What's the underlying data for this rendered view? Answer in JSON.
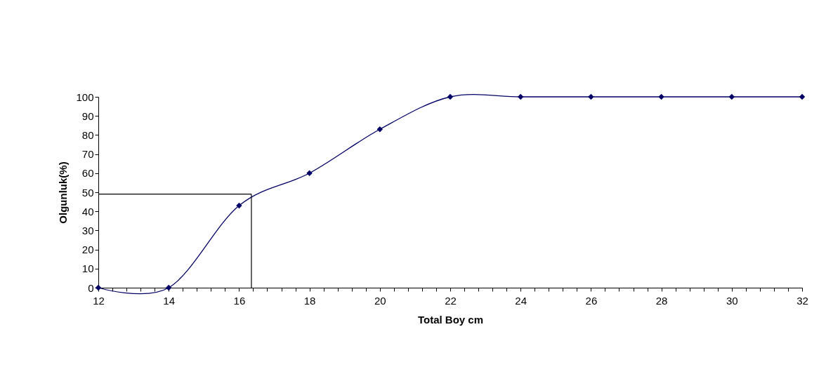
{
  "chart_data": {
    "type": "line",
    "xlabel": "Total Boy cm",
    "ylabel": "Olgunluk(%)",
    "x": [
      12,
      14,
      16,
      18,
      20,
      22,
      24,
      26,
      28,
      30,
      32
    ],
    "series": [
      {
        "color": "#000066",
        "values": [
          0,
          0,
          43,
          60,
          83,
          100,
          100,
          100,
          100,
          100,
          100
        ]
      }
    ],
    "xlim": [
      12,
      32
    ],
    "ylim": [
      0,
      100
    ],
    "xticks": [
      12,
      {
        "value": 12.4,
        "label": null
      },
      {
        "value": 12.8,
        "label": null
      },
      {
        "value": 13.2,
        "label": null
      },
      {
        "value": 13.6,
        "label": null
      },
      14,
      {
        "value": 14.4,
        "label": null
      },
      {
        "value": 14.8,
        "label": null
      },
      {
        "value": 15.2,
        "label": null
      },
      {
        "value": 15.6,
        "label": null
      },
      16,
      {
        "value": 16.4,
        "label": null
      },
      {
        "value": 16.8,
        "label": null
      },
      {
        "value": 17.2,
        "label": null
      },
      {
        "value": 17.6,
        "label": null
      },
      18,
      {
        "value": 18.4,
        "label": null
      },
      {
        "value": 18.8,
        "label": null
      },
      {
        "value": 19.2,
        "label": null
      },
      {
        "value": 19.6,
        "label": null
      },
      20,
      {
        "value": 20.4,
        "label": null
      },
      {
        "value": 20.8,
        "label": null
      },
      {
        "value": 21.2,
        "label": null
      },
      {
        "value": 21.6,
        "label": null
      },
      22,
      {
        "value": 22.4,
        "label": null
      },
      {
        "value": 22.8,
        "label": null
      },
      {
        "value": 23.2,
        "label": null
      },
      {
        "value": 23.6,
        "label": null
      },
      24,
      {
        "value": 24.4,
        "label": null
      },
      {
        "value": 24.8,
        "label": null
      },
      {
        "value": 25.2,
        "label": null
      },
      {
        "value": 25.6,
        "label": null
      },
      26,
      {
        "value": 26.4,
        "label": null
      },
      {
        "value": 26.8,
        "label": null
      },
      {
        "value": 27.2,
        "label": null
      },
      {
        "value": 27.6,
        "label": null
      },
      28,
      {
        "value": 28.4,
        "label": null
      },
      {
        "value": 28.8,
        "label": null
      },
      {
        "value": 29.2,
        "label": null
      },
      {
        "value": 29.6,
        "label": null
      },
      30,
      {
        "value": 30.4,
        "label": null
      },
      {
        "value": 30.8,
        "label": null
      },
      {
        "value": 31.2,
        "label": null
      },
      {
        "value": 31.6,
        "label": null
      },
      32
    ],
    "yticks": [
      0,
      10,
      20,
      30,
      40,
      50,
      60,
      70,
      80,
      90,
      100
    ],
    "ref_lines": [
      {
        "axis": "y",
        "value": 49,
        "color": "#000000"
      },
      {
        "axis": "x",
        "value": 16.35,
        "color": "#000000"
      }
    ],
    "marker": "diamond",
    "line_style": "solid",
    "grid": false
  }
}
